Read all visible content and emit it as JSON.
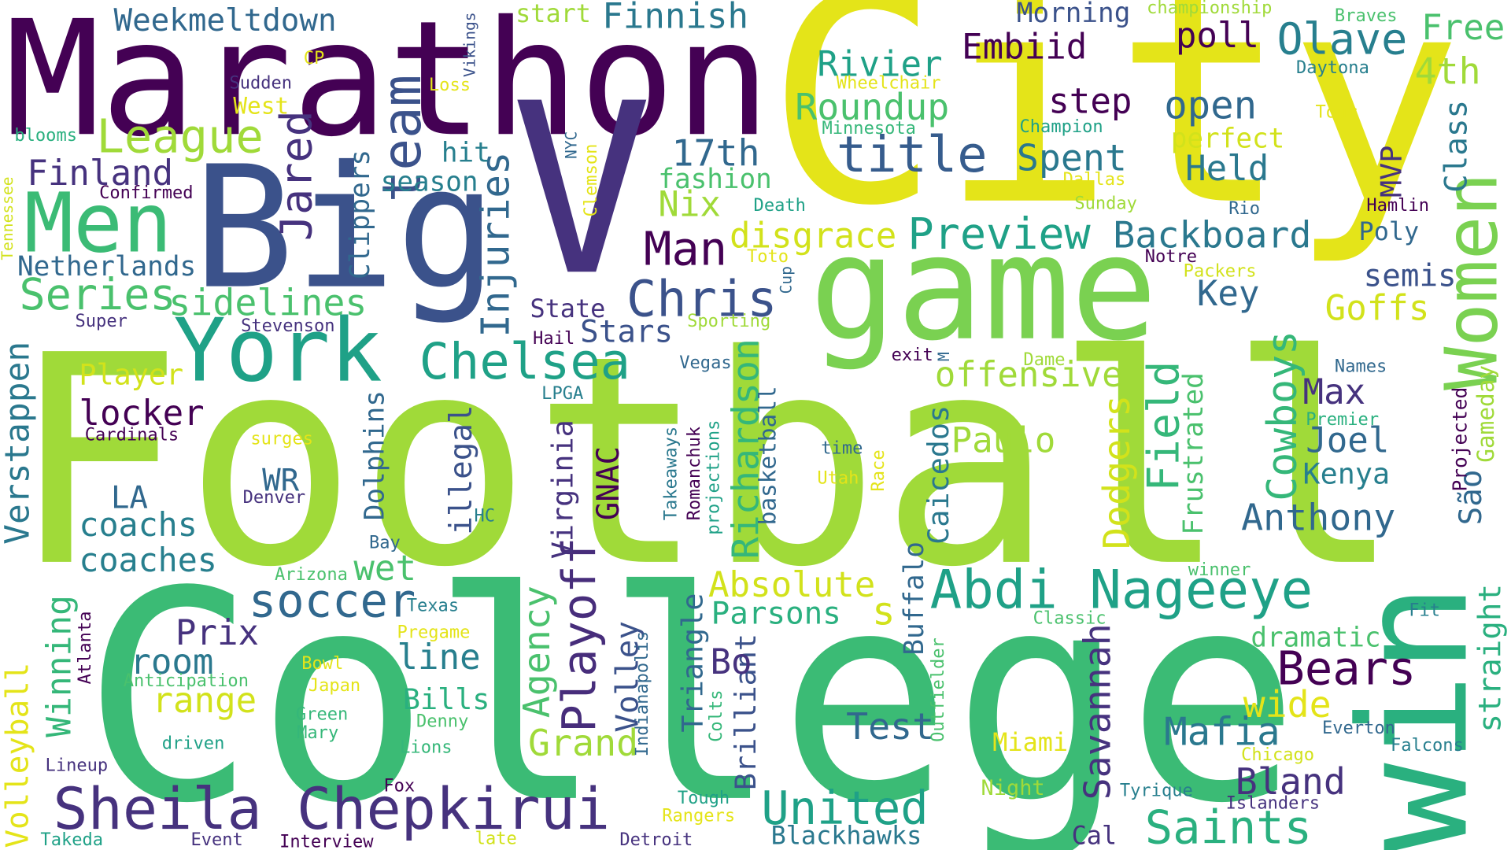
{
  "palette": {
    "purple": "#440154",
    "indigo": "#46327e",
    "blue": "#365c8d",
    "teal": "#277f8e",
    "cyan": "#1fa187",
    "green": "#4ac16d",
    "lime": "#a0da39",
    "yellow": "#e4e419"
  },
  "words": {
    "football": "Football",
    "college": "College",
    "city": "City",
    "marathon": "Marathon",
    "v": "V",
    "game": "game",
    "win": "win",
    "big": "Big",
    "men": "Men",
    "women": "Women",
    "york": "York",
    "sheila_chepkirui": "Sheila Chepkirui",
    "abdi_nageeye": "Abdi Nageeye",
    "chelsea": "Chelsea",
    "chris": "Chris",
    "preview": "Preview",
    "title": "title",
    "playoff": "Playoff",
    "league": "League",
    "series": "Series",
    "sidelines": "sidelines",
    "team": "team",
    "jared": "Jared",
    "injuries": "Injuries",
    "man": "Man",
    "roundup": "Roundup",
    "olave": "Olave",
    "rivier": "Rivier",
    "embiid": "Embiid",
    "step": "step",
    "open": "open",
    "spent": "Spent",
    "held": "Held",
    "backboard": "Backboard",
    "soccer": "soccer",
    "united": "United",
    "saints": "Saints",
    "bears": "Bears",
    "bland": "Bland",
    "mafia": "Mafia",
    "grand": "Grand",
    "cowboys": "Cowboys",
    "dodgers": "Dodgers",
    "field": "Field",
    "richardson": "Richardson",
    "savannah": "Savannah",
    "agency": "Agency",
    "verstappen": "Verstappen",
    "volleyball": "Volleyball",
    "winning": "Winning",
    "anthony": "Anthony",
    "weekmeltdown": "Weekmeltdown",
    "finnish": "Finnish",
    "start": "start",
    "vikings": "Vikings",
    "morning": "Morning",
    "championship": "championship",
    "braves": "Braves",
    "free": "Free",
    "daytona": "Daytona",
    "4th": "4th",
    "poll": "poll",
    "class": "Class",
    "mvp": "MVP",
    "tour": "Tour",
    "perfect": "perfect",
    "champion": "Champion",
    "minnesota": "Minnesota",
    "wheelchair": "Wheelchair",
    "17th": "17th",
    "fashion": "fashion",
    "nix": "Nix",
    "disgrace": "disgrace",
    "hit": "hit",
    "season": "season",
    "clippers": "Clippers",
    "finland": "Finland",
    "netherlands": "Netherlands",
    "confirmed": "Confirmed",
    "blooms": "blooms",
    "tennessee": "Tennessee",
    "cp": "CP",
    "sudden": "Sudden",
    "west": "West",
    "loss": "Loss",
    "nyc": "NYC",
    "clemson": "Clemson",
    "death": "Death",
    "dallas": "Dallas",
    "sunday": "Sunday",
    "rio": "Rio",
    "hamlin": "Hamlin",
    "poly": "Poly",
    "notre": "Notre",
    "semis": "semis",
    "packers": "Packers",
    "key": "Key",
    "goffs": "Goffs",
    "toto": "Toto",
    "cup": "Cup",
    "super": "Super",
    "stevenson": "Stevenson",
    "state": "State",
    "hail": "Hail",
    "stars": "Stars",
    "sporting": "Sporting",
    "vegas": "Vegas",
    "lpga": "LPGA",
    "exit": "exit",
    "m": "M",
    "dame": "Dame",
    "offensive": "offensive",
    "names": "Names",
    "max": "Max",
    "joel": "Joel",
    "kenya": "Kenya",
    "premier": "Premier",
    "gameday": "Gameday",
    "projected": "Projected",
    "sao": "São",
    "player": "Player",
    "locker": "locker",
    "cardinals": "Cardinals",
    "surges": "surges",
    "dolphins": "Dolphins",
    "illegal": "illegal",
    "virginia": "Virginia",
    "gnac": "GNAC",
    "takeaways": "Takeaways",
    "romanchuk": "Romanchuk",
    "projections": "projections",
    "basketball": "basketball",
    "time": "time",
    "race": "Race",
    "utah": "Utah",
    "caicedos": "Caicedos",
    "paulo": "Paulo",
    "frustrated": "Frustrated",
    "wr": "WR",
    "denver": "Denver",
    "hc": "HC",
    "la": "LA",
    "coachs": "coachs",
    "coaches": "coaches",
    "bay": "Bay",
    "arizona": "Arizona",
    "wet": "wet",
    "absolute": "Absolute",
    "parsons": "Parsons",
    "s": "s",
    "buffalo": "Buffalo",
    "prix": "Prix",
    "room": "room",
    "range": "range",
    "texas": "Texas",
    "pregame": "Pregame",
    "line": "line",
    "bowl": "Bowl",
    "japan": "Japan",
    "anticipation": "Anticipation",
    "atlanta": "Atlanta",
    "green": "Green",
    "mary": "Mary",
    "bills": "Bills",
    "denny": "Denny",
    "driven": "driven",
    "lions": "Lions",
    "lineup": "Lineup",
    "fox": "Fox",
    "volley": "Volley",
    "indianapolis": "Indianapolis",
    "triangle": "Triangle",
    "colts": "Colts",
    "bo": "Bo",
    "brilliant": "Brilliant",
    "test": "Test",
    "outfielder": "Outfielder",
    "classic": "Classic",
    "miami": "Miami",
    "night": "Night",
    "wide": "wide",
    "dramatic": "dramatic",
    "winner": "winner",
    "fit": "Fit",
    "straight": "straight",
    "everton": "Everton",
    "chicago": "Chicago",
    "falcons": "Falcons",
    "islanders": "Islanders",
    "tyrique": "Tyrique",
    "tough": "Tough",
    "rangers": "Rangers",
    "blackhawks": "Blackhawks",
    "cal": "Cal",
    "takeda": "Takeda",
    "event": "Event",
    "interview": "Interview",
    "late": "late",
    "detroit": "Detroit"
  }
}
